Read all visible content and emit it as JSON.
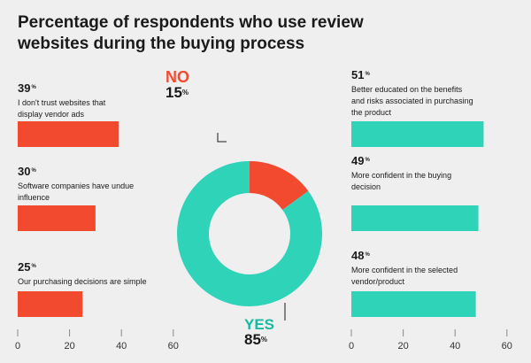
{
  "title": {
    "line1": "Percentage of respondents who use review",
    "line2": "websites during the buying process"
  },
  "colors": {
    "no": "#f24a2e",
    "yes": "#2fd3b8",
    "text": "#1a1a1a",
    "background": "#efefef"
  },
  "chart_data": [
    {
      "type": "pie",
      "title": "Percentage of respondents who use review websites during the buying process",
      "slices": [
        {
          "label": "NO",
          "value": 15,
          "display": "15"
        },
        {
          "label": "YES",
          "value": 85,
          "display": "85"
        }
      ],
      "percent_sign": "%"
    },
    {
      "type": "bar",
      "orientation": "horizontal",
      "series_color": "#f24a2e",
      "categories": [
        "I don't trust websites that display vendor ads",
        "Software companies have undue influence",
        "Our purchasing decisions are simple"
      ],
      "values": [
        39,
        30,
        25
      ],
      "value_labels": [
        "39",
        "30",
        "25"
      ],
      "label_lines": [
        [
          "I don't trust websites that",
          "display vendor ads"
        ],
        [
          "Software companies have undue",
          "influence"
        ],
        [
          "Our purchasing decisions are simple"
        ]
      ],
      "xlim": [
        0,
        60
      ],
      "ticks": [
        "0",
        "20",
        "40",
        "60"
      ]
    },
    {
      "type": "bar",
      "orientation": "horizontal",
      "series_color": "#2fd3b8",
      "categories": [
        "Better educated on the benefits and risks associated in purchasing the product",
        "More confident in the buying decision",
        "More confident in the selected vendor/product"
      ],
      "values": [
        51,
        49,
        48
      ],
      "value_labels": [
        "51",
        "49",
        "48"
      ],
      "label_lines": [
        [
          "Better educated on the benefits",
          "and risks associated in purchasing",
          "the product"
        ],
        [
          "More confident in the buying",
          "decision"
        ],
        [
          "More confident in the selected",
          "vendor/product"
        ]
      ],
      "xlim": [
        0,
        60
      ],
      "ticks": [
        "0",
        "20",
        "40",
        "60"
      ]
    }
  ]
}
